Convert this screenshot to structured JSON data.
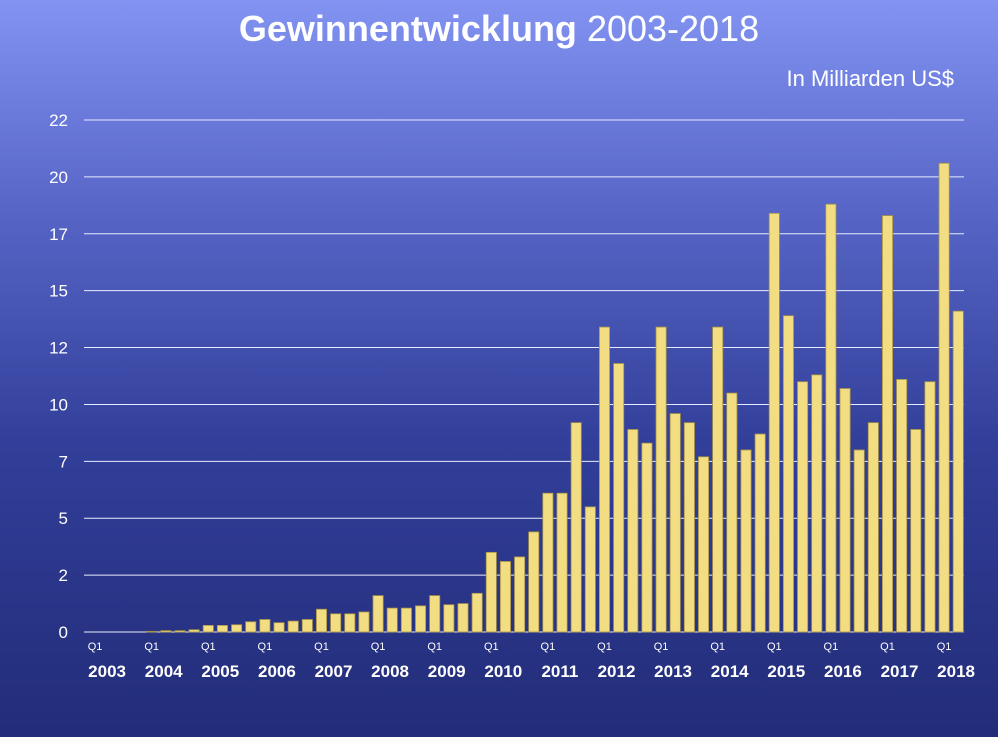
{
  "title": {
    "bold": "Gewinnentwicklung",
    "light": "2003-2018"
  },
  "subtitle": "In Milliarden US$",
  "colors": {
    "bar": "#f3dd82",
    "bar_edge": "#a89446",
    "background_top": "#8293f2",
    "background_bottom": "#222c78",
    "text": "#ffffff"
  },
  "chart_data": {
    "type": "bar",
    "title": "Gewinnentwicklung 2003-2018",
    "ylabel": "In Milliarden US$",
    "xlabel": "",
    "ylim": [
      0,
      22.5
    ],
    "grid": true,
    "legend": "none",
    "ytick_labels": [
      "0",
      "2",
      "5",
      "7",
      "10",
      "12",
      "15",
      "17",
      "20",
      "22"
    ],
    "year_labels": [
      "2003",
      "2004",
      "2005",
      "2006",
      "2007",
      "2008",
      "2009",
      "2010",
      "2011",
      "2012",
      "2013",
      "2014",
      "2015",
      "2016",
      "2017",
      "2018"
    ],
    "quarter_marker": "Q1",
    "first_quarter": "2003 Q1",
    "values": [
      0,
      0,
      0,
      0,
      0.03,
      0.06,
      0.06,
      0.1,
      0.29,
      0.29,
      0.32,
      0.45,
      0.55,
      0.41,
      0.48,
      0.55,
      1.0,
      0.8,
      0.8,
      0.88,
      1.6,
      1.05,
      1.05,
      1.15,
      1.6,
      1.2,
      1.25,
      1.7,
      3.5,
      3.1,
      3.3,
      4.4,
      6.1,
      6.1,
      9.2,
      5.5,
      13.4,
      11.8,
      8.9,
      8.3,
      13.4,
      9.6,
      9.2,
      7.7,
      13.4,
      10.5,
      8.0,
      8.7,
      18.4,
      13.9,
      11.0,
      11.3,
      18.8,
      10.7,
      8.0,
      9.2,
      18.3,
      11.1,
      8.9,
      11.0,
      20.6,
      14.1
    ]
  }
}
